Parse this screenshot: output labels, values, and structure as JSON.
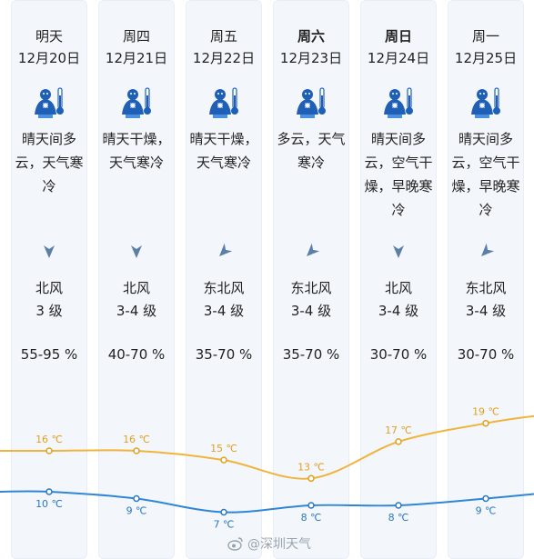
{
  "days": [
    {
      "day": "明天",
      "bold": false,
      "date": "12月20日",
      "icon": "freezing-weather-icon",
      "desc": "晴天间多云，天气寒冷",
      "wind_dir": "北风",
      "wind_level": "3 级",
      "humidity": "55-95 %"
    },
    {
      "day": "周四",
      "bold": false,
      "date": "12月21日",
      "icon": "freezing-weather-icon",
      "desc": "晴天干燥，天气寒冷",
      "wind_dir": "北风",
      "wind_level": "3-4 级",
      "humidity": "40-70 %"
    },
    {
      "day": "周五",
      "bold": false,
      "date": "12月22日",
      "icon": "freezing-weather-icon",
      "desc": "晴天干燥，天气寒冷",
      "wind_dir": "东北风",
      "wind_level": "3-4 级",
      "humidity": "35-70 %"
    },
    {
      "day": "周六",
      "bold": true,
      "date": "12月23日",
      "icon": "freezing-weather-icon",
      "desc": "多云，天气寒冷",
      "wind_dir": "东北风",
      "wind_level": "3-4 级",
      "humidity": "35-70 %"
    },
    {
      "day": "周日",
      "bold": true,
      "date": "12月24日",
      "icon": "freezing-weather-icon",
      "desc": "晴天间多云，空气干燥，早晚寒冷",
      "wind_dir": "北风",
      "wind_level": "3-4 级",
      "humidity": "30-70 %"
    },
    {
      "day": "周一",
      "bold": false,
      "date": "12月25日",
      "icon": "freezing-weather-icon",
      "desc": "晴天间多云，空气干燥，早晚寒冷",
      "wind_dir": "东北风",
      "wind_level": "3-4 级",
      "humidity": "30-70 %"
    }
  ],
  "temps": {
    "high": [
      16,
      16,
      15,
      13,
      17,
      19
    ],
    "low": [
      10,
      9,
      7,
      8,
      8,
      9
    ],
    "unit": "℃"
  },
  "colors": {
    "high_line": "#f0b43a",
    "low_line": "#2f86d4",
    "column_bg": "#f3f7fc",
    "icon_blue": "#1f5fb6"
  },
  "watermark": "@深圳天气"
}
